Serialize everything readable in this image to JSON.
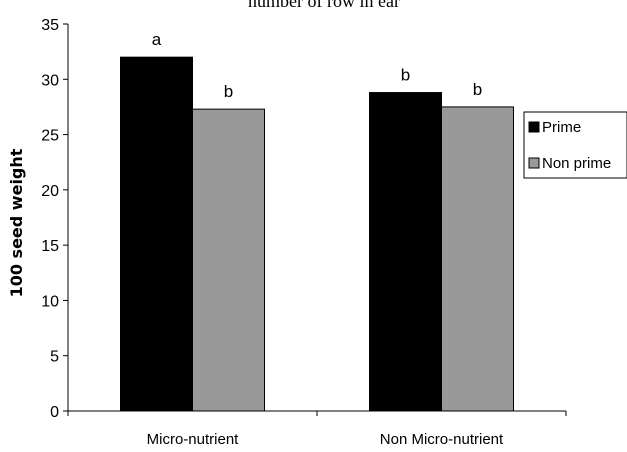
{
  "chart_data": {
    "type": "bar",
    "title": "number of row in ear",
    "xlabel": "",
    "ylabel": "100 seed weight",
    "ylim": [
      0,
      35
    ],
    "yticks": [
      0,
      5,
      10,
      15,
      20,
      25,
      30,
      35
    ],
    "categories": [
      "Micro-nutrient",
      "Non Micro-nutrient"
    ],
    "series": [
      {
        "name": "Prime",
        "values": [
          32.0,
          28.8
        ],
        "labels": [
          "a",
          "b"
        ],
        "color": "#000000"
      },
      {
        "name": "Non prime",
        "values": [
          27.3,
          27.5
        ],
        "labels": [
          "b",
          "b"
        ],
        "color": "#999999"
      }
    ],
    "grid": false,
    "legend": "right"
  }
}
